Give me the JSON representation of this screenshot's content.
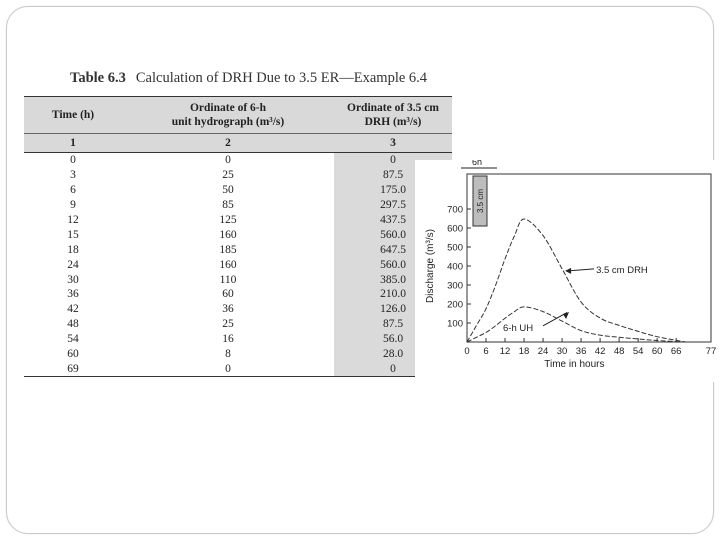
{
  "table": {
    "number": "Table 6.3",
    "caption": "Calculation of DRH Due to 3.5 ER—Example 6.4",
    "headers": {
      "col1": "Time (h)",
      "col2_line1": "Ordinate of 6-h",
      "col2_line2": "unit hydrograph (m³/s)",
      "col3_line1": "Ordinate of 3.5 cm",
      "col3_line2": "DRH (m³/s)"
    },
    "column_numbers": [
      "1",
      "2",
      "3"
    ],
    "rows": [
      [
        "0",
        "0",
        "0"
      ],
      [
        "3",
        "25",
        "87.5"
      ],
      [
        "6",
        "50",
        "175.0"
      ],
      [
        "9",
        "85",
        "297.5"
      ],
      [
        "12",
        "125",
        "437.5"
      ],
      [
        "15",
        "160",
        "560.0"
      ],
      [
        "18",
        "185",
        "647.5"
      ],
      [
        "24",
        "160",
        "560.0"
      ],
      [
        "30",
        "110",
        "385.0"
      ],
      [
        "36",
        "60",
        "210.0"
      ],
      [
        "42",
        "36",
        "126.0"
      ],
      [
        "48",
        "25",
        "87.5"
      ],
      [
        "54",
        "16",
        "56.0"
      ],
      [
        "60",
        "8",
        "28.0"
      ],
      [
        "69",
        "0",
        "0"
      ]
    ]
  },
  "chart_data": {
    "type": "line",
    "xlabel": "Time in hours",
    "ylabel": "Discharge (m³/s)",
    "xlim": [
      0,
      77
    ],
    "ylim": [
      0,
      800
    ],
    "x_ticks": [
      "0",
      "6",
      "12",
      "18",
      "24",
      "30",
      "36",
      "42",
      "48",
      "54",
      "60",
      "66",
      "77"
    ],
    "y_ticks": [
      "100",
      "200",
      "300",
      "400",
      "500",
      "600",
      "700"
    ],
    "annotations": [
      "6h",
      "3.5 cm"
    ],
    "series": [
      {
        "name": "3.5 cm DRH",
        "x": [
          0,
          3,
          6,
          9,
          12,
          15,
          18,
          24,
          30,
          36,
          42,
          48,
          54,
          60,
          69
        ],
        "y": [
          0,
          87.5,
          175,
          297.5,
          437.5,
          560,
          647.5,
          560,
          385,
          210,
          126,
          87.5,
          56,
          28,
          0
        ]
      },
      {
        "name": "6-h UH",
        "x": [
          0,
          3,
          6,
          9,
          12,
          15,
          18,
          24,
          30,
          36,
          42,
          48,
          54,
          60,
          69
        ],
        "y": [
          0,
          25,
          50,
          85,
          125,
          160,
          185,
          160,
          110,
          60,
          36,
          25,
          16,
          8,
          0
        ]
      }
    ]
  }
}
